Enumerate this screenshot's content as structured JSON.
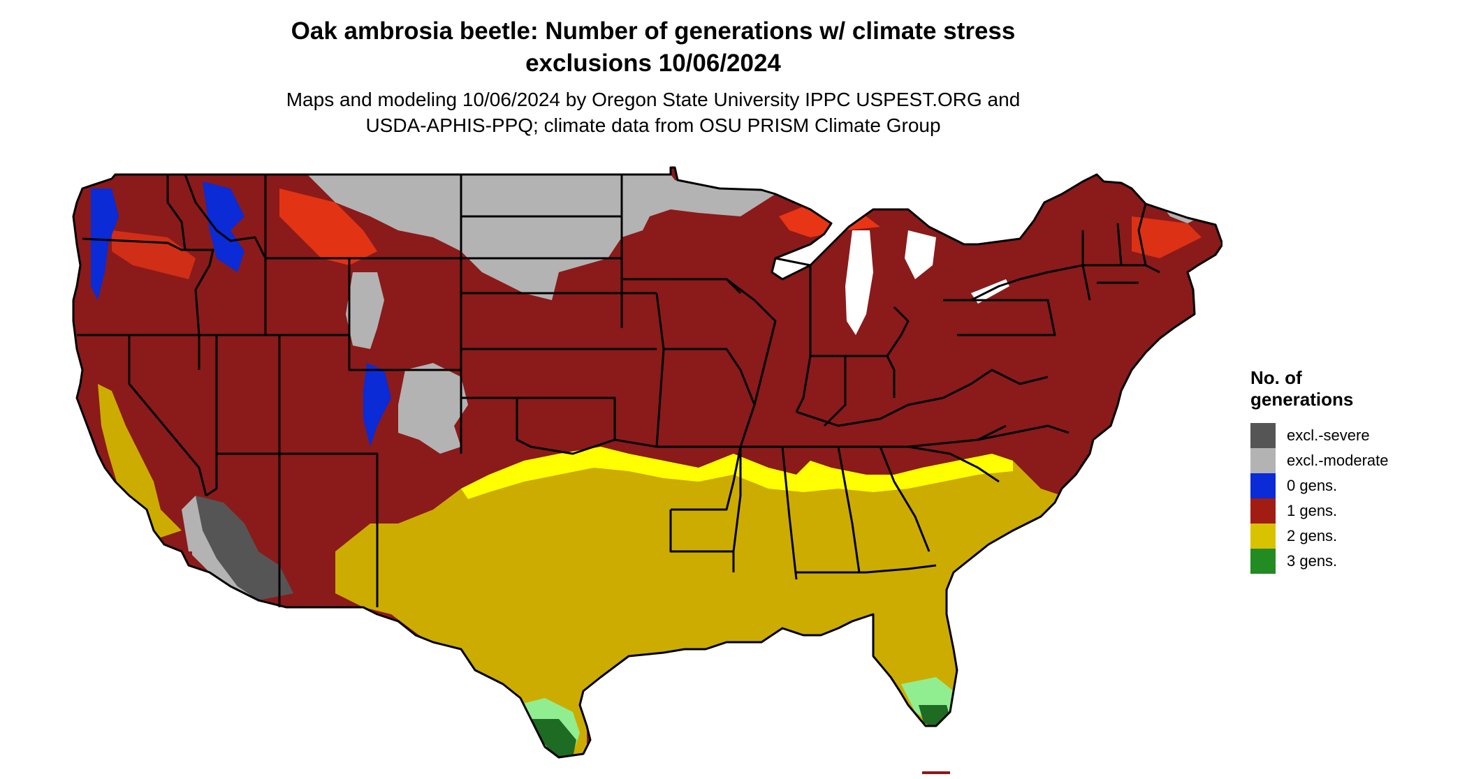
{
  "title": {
    "line1": "Oak ambrosia beetle: Number of generations w/ climate stress",
    "line2": "exclusions 10/06/2024"
  },
  "subtitle": {
    "line1": "Maps and modeling 10/06/2024 by Oregon State University IPPC USPEST.ORG and",
    "line2": "USDA-APHIS-PPQ; climate data from OSU PRISM Climate Group"
  },
  "legend": {
    "title_line1": "No. of",
    "title_line2": "generations",
    "items": [
      {
        "label": "excl.-severe",
        "color": "#555555"
      },
      {
        "label": "excl.-moderate",
        "color": "#b3b3b3"
      },
      {
        "label": "0 gens.",
        "color": "#0a2bd6"
      },
      {
        "label": "1 gens.",
        "color": "#a11d14"
      },
      {
        "label": "2 gens.",
        "color": "#d9c200"
      },
      {
        "label": "3 gens.",
        "color": "#228b22"
      }
    ]
  },
  "map_colors": {
    "excl_severe": "#555555",
    "excl_moderate": "#b3b3b3",
    "zero_gens": "#0a2bd6",
    "one_gen": "#8b1a1a",
    "one_gen_bright": "#ff3c14",
    "two_gens": "#ccac00",
    "two_gens_bright": "#ffff00",
    "three_gens": "#1e6b23",
    "three_gens_light": "#90ee90",
    "water": "#ffffff",
    "border": "#000000"
  }
}
